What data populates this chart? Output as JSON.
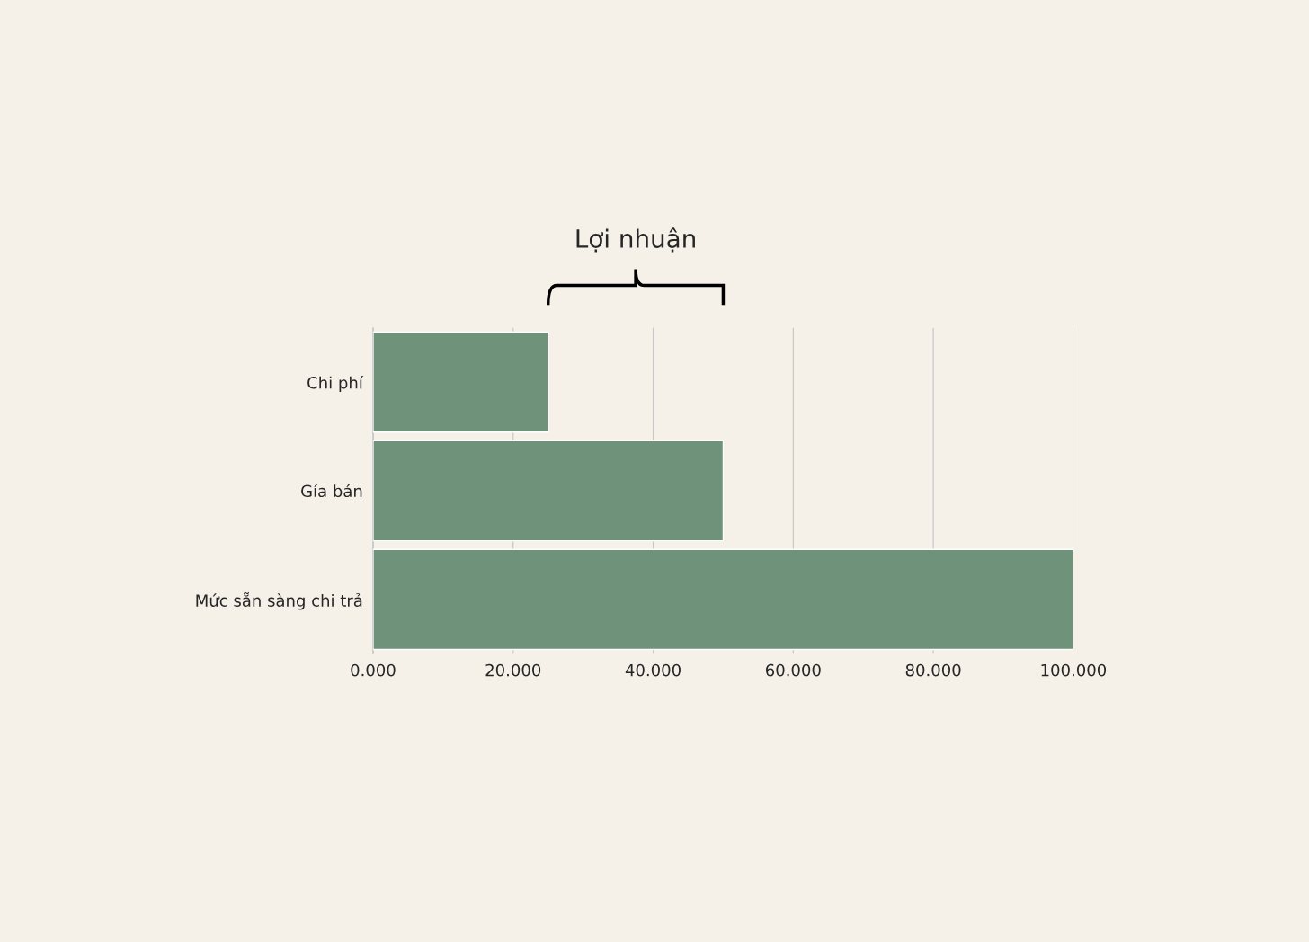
{
  "chart_data": {
    "type": "bar",
    "orientation": "horizontal",
    "categories": [
      "Chi phí",
      "Gía bán",
      "Mức sẵn sàng chi trả"
    ],
    "values": [
      25,
      50,
      100
    ],
    "color": "#6e927a",
    "xlim": [
      0,
      100
    ],
    "xticks": [
      {
        "value": 0,
        "label": "0.000"
      },
      {
        "value": 20,
        "label": "20.000"
      },
      {
        "value": 40,
        "label": "40.000"
      },
      {
        "value": 60,
        "label": "60.000"
      },
      {
        "value": 80,
        "label": "80.000"
      },
      {
        "value": 100,
        "label": "100.000"
      }
    ],
    "grid": "x",
    "legend": false,
    "annotations": [
      "Lợi nhuận"
    ]
  }
}
